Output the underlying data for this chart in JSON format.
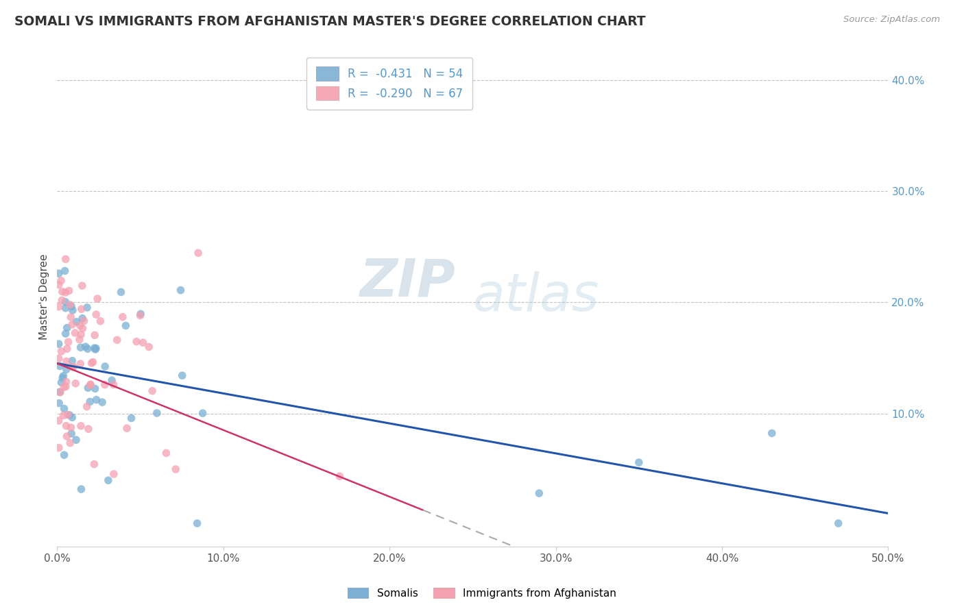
{
  "title": "SOMALI VS IMMIGRANTS FROM AFGHANISTAN MASTER'S DEGREE CORRELATION CHART",
  "source": "Source: ZipAtlas.com",
  "xlim": [
    0.0,
    0.5
  ],
  "ylim": [
    -0.02,
    0.43
  ],
  "somali_color": "#7BAFD4",
  "afghan_color": "#F4A0B0",
  "somali_trend_color": "#2255AA",
  "afghan_trend_color": "#CC3366",
  "watermark_zip": "ZIP",
  "watermark_atlas": "atlas",
  "legend_text1": "R =  -0.431   N = 54",
  "legend_text2": "R =  -0.290   N = 67",
  "legend_label1": "Somalis",
  "legend_label2": "Immigrants from Afghanistan",
  "ylabel": "Master's Degree",
  "somali_R": -0.431,
  "somali_N": 54,
  "afghan_R": -0.29,
  "afghan_N": 67,
  "background_color": "#FFFFFF",
  "grid_color": "#BBBBBB",
  "title_color": "#333333",
  "right_tick_color": "#5599CC",
  "x_tick_vals": [
    0.0,
    0.1,
    0.2,
    0.3,
    0.4,
    0.5
  ],
  "y_tick_vals": [
    0.1,
    0.2,
    0.3,
    0.4
  ]
}
